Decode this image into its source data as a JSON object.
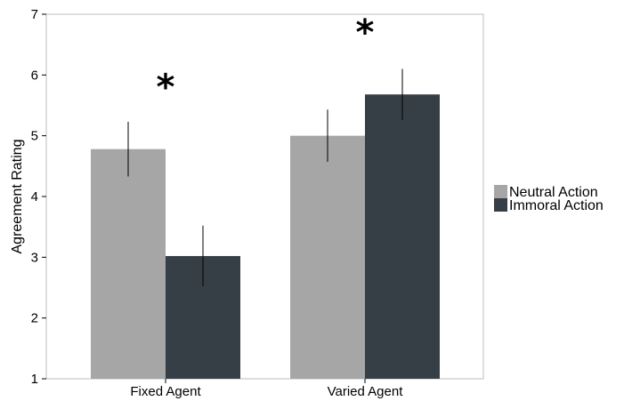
{
  "chart_data": {
    "type": "bar",
    "categories": [
      "Fixed Agent",
      "Varied Agent"
    ],
    "series": [
      {
        "name": "Neutral Action",
        "values": [
          4.78,
          5.0
        ],
        "errors": [
          0.45,
          0.43
        ],
        "color": "#a6a6a6"
      },
      {
        "name": "Immoral Action",
        "values": [
          3.02,
          5.68
        ],
        "errors": [
          0.5,
          0.42
        ],
        "color": "#373f46"
      }
    ],
    "xlabel": "",
    "ylabel": "Agreement Rating",
    "ylim": [
      1,
      7
    ],
    "yticks": [
      1,
      2,
      3,
      4,
      5,
      6,
      7
    ],
    "grid": false,
    "legend": "right",
    "annotations": [
      {
        "category": "Fixed Agent",
        "text": "*",
        "y": 6.0
      },
      {
        "category": "Varied Agent",
        "text": "*",
        "y": 6.9
      }
    ]
  }
}
